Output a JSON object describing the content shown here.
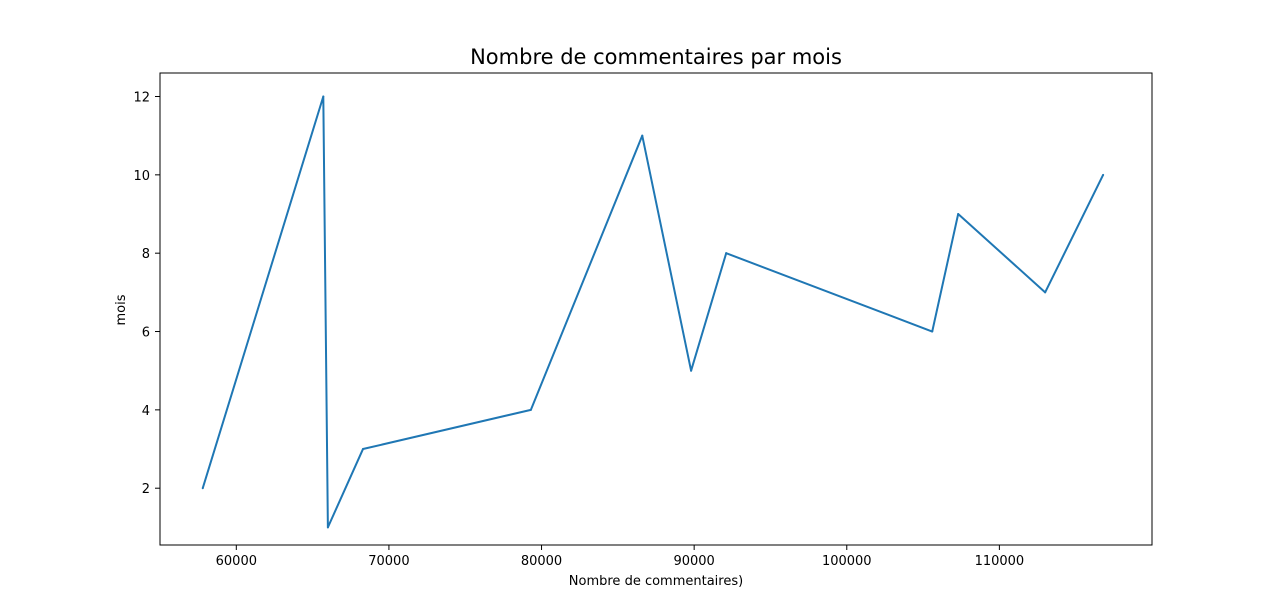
{
  "chart_data": {
    "type": "line",
    "title": "Nombre de commentaires par mois",
    "xlabel": "Nombre de commentaires)",
    "ylabel": "mois",
    "xlim": [
      55000,
      120000
    ],
    "ylim": [
      0.55,
      12.6
    ],
    "xticks": [
      60000,
      70000,
      80000,
      90000,
      100000,
      110000
    ],
    "yticks": [
      2,
      4,
      6,
      8,
      10,
      12
    ],
    "grid": false,
    "color": "#1f77b4",
    "series": [
      {
        "x": [
          57800,
          65700,
          66000,
          68300,
          79300,
          86600,
          89800,
          92100,
          105600,
          107300,
          113000,
          116800
        ],
        "y": [
          2,
          12,
          1,
          3,
          4,
          11,
          5,
          8,
          6,
          9,
          7,
          10
        ]
      }
    ]
  }
}
